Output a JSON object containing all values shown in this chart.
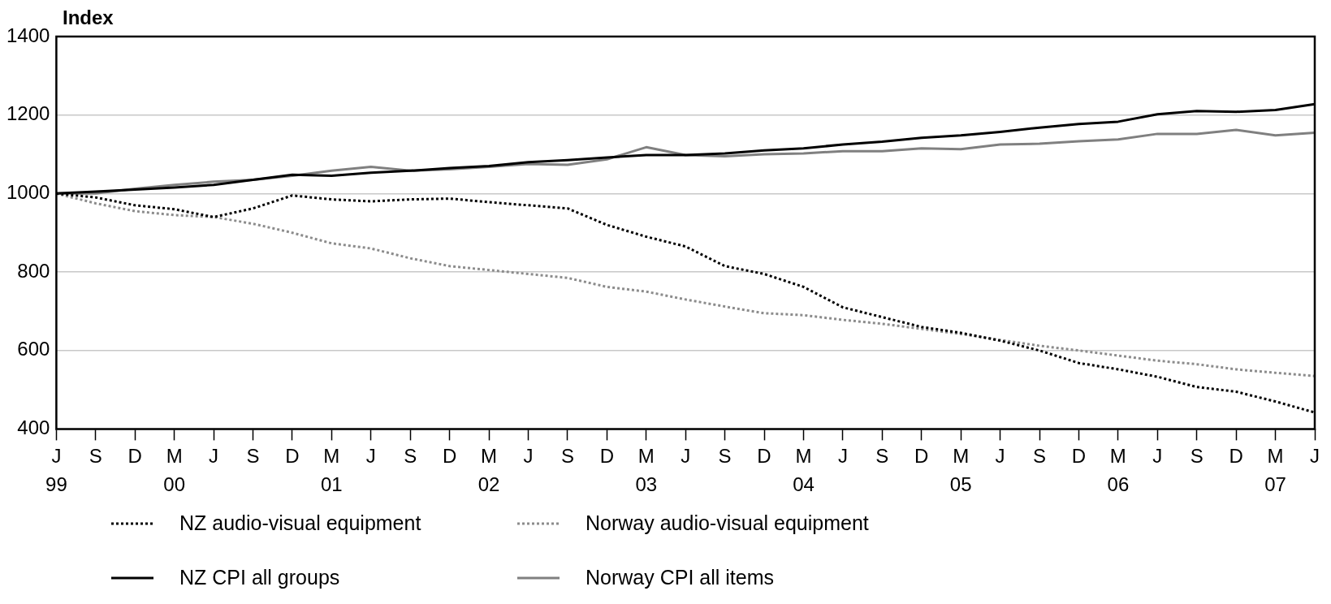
{
  "chart_data": {
    "type": "line",
    "ylabel": "Index",
    "categories": [
      "J\n99",
      "S",
      "D",
      "M\n00",
      "J",
      "S",
      "D",
      "M\n01",
      "J",
      "S",
      "D",
      "M\n02",
      "J",
      "S",
      "D",
      "M\n03",
      "J",
      "S",
      "D",
      "M\n04",
      "J",
      "S",
      "D",
      "M\n05",
      "J",
      "S",
      "D",
      "M\n06",
      "J",
      "S",
      "D",
      "M\n07",
      "J"
    ],
    "series": [
      {
        "name": "NZ audio-visual equipment",
        "color": "#000000",
        "line_style": "dotted",
        "values": [
          1000,
          990,
          970,
          960,
          940,
          962,
          995,
          985,
          980,
          985,
          987,
          978,
          970,
          962,
          920,
          890,
          865,
          815,
          795,
          762,
          710,
          685,
          660,
          645,
          625,
          600,
          568,
          552,
          533,
          507,
          495,
          470,
          442
        ]
      },
      {
        "name": "Norway audio-visual equipment",
        "color": "#8c8c8c",
        "line_style": "dotted",
        "values": [
          1000,
          975,
          955,
          945,
          940,
          923,
          900,
          873,
          860,
          835,
          815,
          805,
          795,
          785,
          762,
          750,
          730,
          712,
          695,
          690,
          678,
          668,
          655,
          642,
          627,
          612,
          600,
          587,
          574,
          565,
          552,
          543,
          535
        ]
      },
      {
        "name": "NZ CPI all groups",
        "color": "#000000",
        "line_style": "solid",
        "values": [
          1000,
          1005,
          1010,
          1015,
          1022,
          1035,
          1048,
          1045,
          1053,
          1058,
          1065,
          1070,
          1080,
          1085,
          1092,
          1098,
          1098,
          1102,
          1110,
          1115,
          1125,
          1132,
          1142,
          1148,
          1157,
          1168,
          1177,
          1183,
          1202,
          1210,
          1208,
          1213,
          1228
        ]
      },
      {
        "name": "Norway CPI all items",
        "color": "#808080",
        "line_style": "solid",
        "values": [
          1000,
          1000,
          1012,
          1022,
          1030,
          1035,
          1045,
          1058,
          1068,
          1058,
          1062,
          1068,
          1075,
          1073,
          1087,
          1118,
          1098,
          1095,
          1100,
          1102,
          1108,
          1108,
          1115,
          1113,
          1125,
          1127,
          1133,
          1138,
          1152,
          1152,
          1162,
          1148,
          1155
        ]
      }
    ],
    "ylim": [
      400,
      1400
    ],
    "yticks": [
      400,
      600,
      800,
      1000,
      1200,
      1400
    ],
    "grid": "y",
    "legend": "bottom",
    "marker": "none"
  }
}
